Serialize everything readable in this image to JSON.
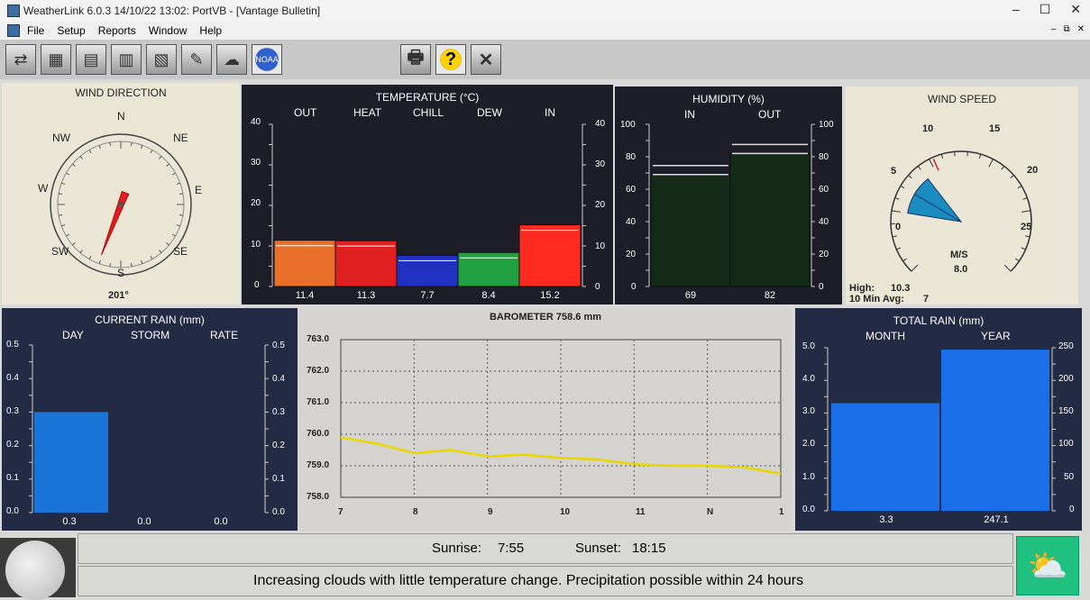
{
  "window": {
    "title": "WeatherLink 6.0.3  14/10/22  13:02: PortVB - [Vantage Bulletin]",
    "minimize": "–",
    "maximize": "☐",
    "close": "✕"
  },
  "menu": {
    "items": [
      "File",
      "Setup",
      "Reports",
      "Window",
      "Help"
    ],
    "mdi": [
      "–",
      "⧉",
      "✕"
    ]
  },
  "toolbar": {
    "buttons": [
      "connect",
      "station",
      "browse",
      "graph",
      "summary",
      "notes",
      "maps",
      "noaa"
    ],
    "print": "🖶",
    "help": "?",
    "close": "✕"
  },
  "wind_direction": {
    "title": "WIND DIRECTION",
    "N": "N",
    "NE": "NE",
    "E": "E",
    "SE": "SE",
    "S": "S",
    "SW": "SW",
    "W": "W",
    "NW": "NW",
    "value": "201°",
    "degrees": 201
  },
  "temperature": {
    "title": "TEMPERATURE (°C)",
    "labels": [
      "OUT",
      "HEAT",
      "CHILL",
      "DEW",
      "IN"
    ],
    "values": [
      "11.4",
      "11.3",
      "7.7",
      "8.4",
      "15.2"
    ],
    "ticks": [
      "40",
      "30",
      "20",
      "10",
      "0"
    ]
  },
  "humidity": {
    "title": "HUMIDITY (%)",
    "labels": [
      "IN",
      "OUT"
    ],
    "values": [
      "69",
      "82"
    ],
    "ticks": [
      "100",
      "80",
      "60",
      "40",
      "20",
      "0"
    ]
  },
  "wind_speed": {
    "title": "WIND SPEED",
    "ticks": [
      "0",
      "5",
      "10",
      "15",
      "20",
      "25"
    ],
    "unit": "M/S",
    "value": "8.0",
    "high_label": "High:",
    "high_value": "10.3",
    "avg_label": "10 Min Avg:",
    "avg_value": "7"
  },
  "current_rain": {
    "title": "CURRENT RAIN (mm)",
    "labels": [
      "DAY",
      "STORM",
      "RATE"
    ],
    "values": [
      "0.3",
      "0.0",
      "0.0"
    ],
    "ticks": [
      "0.5",
      "0.4",
      "0.3",
      "0.2",
      "0.1",
      "0.0"
    ]
  },
  "barometer": {
    "title": "BAROMETER  758.6 mm",
    "yticks": [
      "763.0",
      "762.0",
      "761.0",
      "760.0",
      "759.0",
      "758.0"
    ],
    "xticks": [
      "7",
      "8",
      "9",
      "10",
      "11",
      "N",
      "1"
    ]
  },
  "total_rain": {
    "title": "TOTAL RAIN (mm)",
    "labels": [
      "MONTH",
      "YEAR"
    ],
    "values": [
      "3.3",
      "247.1"
    ],
    "left_ticks": [
      "5.0",
      "4.0",
      "3.0",
      "2.0",
      "1.0",
      "0.0"
    ],
    "right_ticks": [
      "250",
      "200",
      "150",
      "100",
      "50",
      "0"
    ]
  },
  "status": {
    "sunrise_label": "Sunrise:",
    "sunrise": "7:55",
    "sunset_label": "Sunset:",
    "sunset": "18:15",
    "forecast": "Increasing clouds with little temperature change.  Precipitation possible within 24 hours"
  },
  "chart_data": [
    {
      "type": "bar",
      "title": "TEMPERATURE (°C)",
      "categories": [
        "OUT",
        "HEAT",
        "CHILL",
        "DEW",
        "IN"
      ],
      "values": [
        11.4,
        11.3,
        7.7,
        8.4,
        15.2
      ],
      "ylim": [
        0,
        40
      ],
      "colors": [
        "#e8702a",
        "#e02020",
        "#2030c0",
        "#20a040",
        "#ff2a20"
      ]
    },
    {
      "type": "bar",
      "title": "HUMIDITY (%)",
      "categories": [
        "IN",
        "OUT"
      ],
      "values": [
        69,
        82
      ],
      "ylim": [
        0,
        100
      ]
    },
    {
      "type": "bar",
      "title": "CURRENT RAIN (mm)",
      "categories": [
        "DAY",
        "STORM",
        "RATE"
      ],
      "values": [
        0.3,
        0.0,
        0.0
      ],
      "ylim": [
        0,
        0.5
      ]
    },
    {
      "type": "line",
      "title": "BAROMETER  758.6 mm",
      "x": [
        7,
        7.5,
        8,
        8.5,
        9,
        9.5,
        10,
        10.5,
        11,
        11.5,
        12,
        12.5,
        13
      ],
      "values": [
        759.9,
        759.7,
        759.4,
        759.5,
        759.3,
        759.35,
        759.25,
        759.2,
        759.05,
        759.0,
        759.0,
        758.95,
        758.75
      ],
      "xlabels": [
        "7",
        "8",
        "9",
        "10",
        "11",
        "N",
        "1"
      ],
      "ylim": [
        758.0,
        763.0
      ],
      "grid": true
    },
    {
      "type": "bar",
      "title": "TOTAL RAIN (mm)",
      "categories": [
        "MONTH",
        "YEAR"
      ],
      "values": [
        3.3,
        247.1
      ],
      "ylim_left": [
        0,
        5.0
      ],
      "ylim_right": [
        0,
        250
      ]
    }
  ]
}
